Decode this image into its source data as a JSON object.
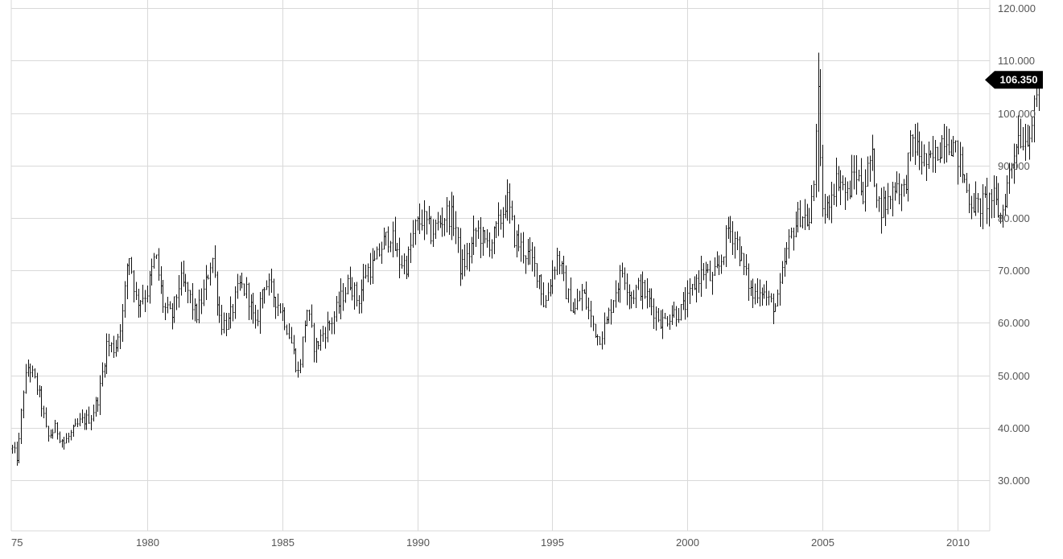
{
  "chart_data": {
    "type": "ohlc",
    "title": "",
    "xlabel": "",
    "ylabel": "",
    "x_ticks": [
      {
        "year": 1975,
        "label": "75"
      },
      {
        "year": 1980,
        "label": "1980"
      },
      {
        "year": 1985,
        "label": "1985"
      },
      {
        "year": 1990,
        "label": "1990"
      },
      {
        "year": 1995,
        "label": "1995"
      },
      {
        "year": 2000,
        "label": "2000"
      },
      {
        "year": 2005,
        "label": "2005"
      },
      {
        "year": 2010,
        "label": "2010"
      }
    ],
    "y_ticks": [
      "30.000",
      "40.000",
      "50.000",
      "60.000",
      "70.000",
      "80.000",
      "90.000",
      "100.000",
      "110.000",
      "120.000"
    ],
    "ylim": [
      20,
      122
    ],
    "xlim": [
      1975.0,
      1981.0
    ],
    "grid": true,
    "y_axis_side": "right",
    "last_value_label": "106.350",
    "last_value": 106.35,
    "colors": {
      "bars": "#111111",
      "grid": "#d9d9d9",
      "label_bg": "#000000",
      "label_text": "#ffffff"
    },
    "anchors": [
      [
        1975.0,
        36
      ],
      [
        1975.2,
        34
      ],
      [
        1975.4,
        47
      ],
      [
        1975.6,
        52
      ],
      [
        1975.9,
        48
      ],
      [
        1976.1,
        44
      ],
      [
        1976.3,
        38
      ],
      [
        1976.6,
        40
      ],
      [
        1976.9,
        37
      ],
      [
        1977.2,
        39
      ],
      [
        1977.5,
        41
      ],
      [
        1977.9,
        42
      ],
      [
        1978.2,
        46
      ],
      [
        1978.5,
        56
      ],
      [
        1978.8,
        55
      ],
      [
        1979.1,
        62
      ],
      [
        1979.3,
        74
      ],
      [
        1979.6,
        64
      ],
      [
        1980.0,
        66
      ],
      [
        1980.3,
        73
      ],
      [
        1980.6,
        63
      ],
      [
        1980.9,
        61
      ],
      [
        1981.2,
        68
      ],
      [
        1981.5,
        66
      ],
      [
        1981.8,
        61
      ],
      [
        1982.1,
        66
      ],
      [
        1982.4,
        73
      ],
      [
        1982.7,
        60
      ],
      [
        1983.0,
        60
      ],
      [
        1983.4,
        67
      ],
      [
        1983.7,
        66
      ],
      [
        1984.0,
        59
      ],
      [
        1984.3,
        68
      ],
      [
        1984.6,
        66
      ],
      [
        1985.0,
        62
      ],
      [
        1985.3,
        57
      ],
      [
        1985.6,
        50
      ],
      [
        1985.9,
        63
      ],
      [
        1986.2,
        55
      ],
      [
        1986.5,
        58
      ],
      [
        1986.9,
        61
      ],
      [
        1987.2,
        65
      ],
      [
        1987.5,
        68
      ],
      [
        1987.8,
        64
      ],
      [
        1988.1,
        70
      ],
      [
        1988.4,
        71
      ],
      [
        1988.7,
        75
      ],
      [
        1989.0,
        77
      ],
      [
        1989.3,
        72
      ],
      [
        1989.6,
        71
      ],
      [
        1989.9,
        78
      ],
      [
        1990.2,
        80
      ],
      [
        1990.5,
        77
      ],
      [
        1990.8,
        79
      ],
      [
        1991.1,
        81
      ],
      [
        1991.4,
        79
      ],
      [
        1991.6,
        70
      ],
      [
        1991.9,
        73
      ],
      [
        1992.2,
        78
      ],
      [
        1992.5,
        75
      ],
      [
        1992.8,
        76
      ],
      [
        1993.1,
        80
      ],
      [
        1993.3,
        84
      ],
      [
        1993.6,
        76
      ],
      [
        1993.9,
        74
      ],
      [
        1994.2,
        72
      ],
      [
        1994.5,
        69
      ],
      [
        1994.7,
        63
      ],
      [
        1995.0,
        70
      ],
      [
        1995.2,
        73
      ],
      [
        1995.5,
        66
      ],
      [
        1995.8,
        62
      ],
      [
        1996.1,
        66
      ],
      [
        1996.4,
        61
      ],
      [
        1996.7,
        57
      ],
      [
        1997.0,
        60
      ],
      [
        1997.3,
        66
      ],
      [
        1997.6,
        70
      ],
      [
        1997.9,
        65
      ],
      [
        1998.2,
        67
      ],
      [
        1998.5,
        65
      ],
      [
        1998.8,
        62
      ],
      [
        1999.1,
        60
      ],
      [
        1999.4,
        62
      ],
      [
        1999.7,
        62
      ],
      [
        2000.0,
        64
      ],
      [
        2000.3,
        68
      ],
      [
        2000.6,
        70
      ],
      [
        2000.9,
        68
      ],
      [
        2001.2,
        71
      ],
      [
        2001.5,
        78
      ],
      [
        2001.8,
        76
      ],
      [
        2002.1,
        70
      ],
      [
        2002.4,
        65
      ],
      [
        2002.7,
        67
      ],
      [
        2003.0,
        64
      ],
      [
        2003.3,
        63
      ],
      [
        2003.6,
        72
      ],
      [
        2003.9,
        78
      ],
      [
        2004.2,
        81
      ],
      [
        2004.5,
        79
      ],
      [
        2004.7,
        88
      ],
      [
        2004.8,
        108
      ],
      [
        2004.95,
        84
      ],
      [
        2005.1,
        80
      ],
      [
        2005.3,
        85
      ],
      [
        2005.6,
        88
      ],
      [
        2005.9,
        84
      ],
      [
        2006.2,
        89
      ],
      [
        2006.5,
        85
      ],
      [
        2006.8,
        92
      ],
      [
        2007.1,
        82
      ],
      [
        2007.4,
        83
      ],
      [
        2007.7,
        87
      ],
      [
        2008.0,
        85
      ],
      [
        2008.3,
        95
      ],
      [
        2008.6,
        92
      ],
      [
        2008.9,
        90
      ],
      [
        2009.2,
        92
      ],
      [
        2009.5,
        96
      ],
      [
        2009.8,
        94
      ],
      [
        2010.1,
        90
      ],
      [
        2010.4,
        84
      ],
      [
        2010.7,
        82
      ],
      [
        2011.0,
        83
      ],
      [
        2011.3,
        84
      ],
      [
        2011.6,
        80
      ],
      [
        2011.9,
        88
      ],
      [
        2012.2,
        96
      ],
      [
        2012.5,
        95
      ],
      [
        2012.8,
        99
      ],
      [
        2013.05,
        106.35
      ]
    ]
  }
}
